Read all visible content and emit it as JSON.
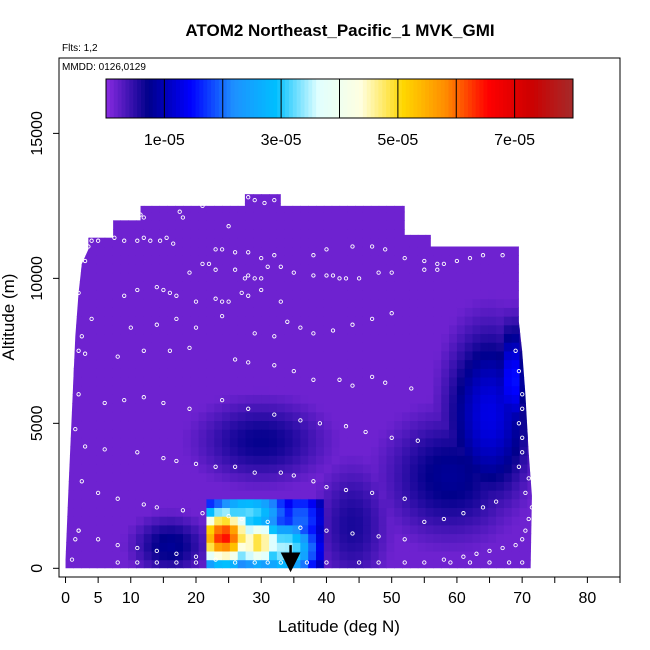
{
  "chart_data": {
    "type": "heatmap",
    "title": "ATOM2 Northeast_Pacific_1 MVK_GMI",
    "flights_label": "Flts: 1,2",
    "dates_label": "MMDD: 0126,0129",
    "xlabel": "Latitude (deg N)",
    "ylabel": "Altitude (m)",
    "xlim": [
      -1,
      85
    ],
    "ylim": [
      -300,
      17600
    ],
    "x_ticks": [
      0,
      5,
      10,
      20,
      30,
      40,
      50,
      60,
      70,
      80
    ],
    "y_ticks": [
      0,
      5000,
      10000,
      15000
    ],
    "y_tick_labels": [
      "0",
      "5000",
      "10000",
      "15000"
    ],
    "colorbar": {
      "min": 0,
      "max": 8e-05,
      "tick_values": [
        1e-05,
        3e-05,
        5e-05,
        7e-05
      ],
      "tick_labels": [
        "1e-05",
        "3e-05",
        "5e-05",
        "7e-05"
      ],
      "divisions": [
        0,
        1e-05,
        2e-05,
        3e-05,
        4e-05,
        5e-05,
        6e-05,
        7e-05,
        8e-05
      ],
      "colors": [
        "#8a2be2",
        "#00008b",
        "#0000ff",
        "#1e90ff",
        "#00bfff",
        "#e0ffff",
        "#ffffe0",
        "#ffd700",
        "#ff8c00",
        "#ff0000",
        "#cd0000",
        "#a52a2a"
      ]
    },
    "domain_envelope": [
      {
        "x": 0,
        "y": 0
      },
      {
        "x": 0,
        "y": 300
      },
      {
        "x": 0.5,
        "y": 3000
      },
      {
        "x": 1,
        "y": 5500
      },
      {
        "x": 1.5,
        "y": 8000
      },
      {
        "x": 2,
        "y": 9500
      },
      {
        "x": 2.5,
        "y": 10500
      },
      {
        "x": 3.5,
        "y": 11000
      },
      {
        "x": 3.5,
        "y": 11400
      },
      {
        "x": 7.3,
        "y": 11400
      },
      {
        "x": 7.3,
        "y": 12000
      },
      {
        "x": 11.5,
        "y": 12000
      },
      {
        "x": 11.5,
        "y": 12500
      },
      {
        "x": 27.5,
        "y": 12500
      },
      {
        "x": 27.5,
        "y": 12900
      },
      {
        "x": 33,
        "y": 12900
      },
      {
        "x": 33,
        "y": 12500
      },
      {
        "x": 52,
        "y": 12500
      },
      {
        "x": 52,
        "y": 11500
      },
      {
        "x": 56,
        "y": 11500
      },
      {
        "x": 56,
        "y": 11100
      },
      {
        "x": 69.5,
        "y": 11100
      },
      {
        "x": 69.5,
        "y": 8500
      },
      {
        "x": 70,
        "y": 7500
      },
      {
        "x": 70.5,
        "y": 6000
      },
      {
        "x": 71,
        "y": 4000
      },
      {
        "x": 71.5,
        "y": 2500
      },
      {
        "x": 71.3,
        "y": 0
      }
    ],
    "blobs": [
      {
        "x": 65,
        "y": 5300,
        "sx": 4.5,
        "sy": 2000,
        "value": 1.3e-05
      },
      {
        "x": 68.5,
        "y": 6500,
        "sx": 1.5,
        "sy": 1300,
        "value": 1.6e-05
      },
      {
        "x": 59,
        "y": 3200,
        "sx": 7,
        "sy": 1500,
        "value": 8e-06
      },
      {
        "x": 30,
        "y": 4400,
        "sx": 7,
        "sy": 1000,
        "value": 7e-06
      },
      {
        "x": 16,
        "y": 800,
        "sx": 4,
        "sy": 700,
        "value": 8e-06
      },
      {
        "x": 44,
        "y": 1500,
        "sx": 4,
        "sy": 1500,
        "value": 6e-06
      }
    ],
    "hotspot": {
      "x_range": [
        22,
        40
      ],
      "y_top": 2500,
      "cells": [
        {
          "x": 24.3,
          "y": 1100,
          "sx": 3.5,
          "sy": 750,
          "value": 6.5e-05
        },
        {
          "x": 29.5,
          "y": 900,
          "sx": 3,
          "sy": 650,
          "value": 5e-05
        },
        {
          "x": 33.5,
          "y": 700,
          "sx": 4,
          "sy": 800,
          "value": 3.5e-05
        },
        {
          "x": 28,
          "y": 1900,
          "sx": 5,
          "sy": 700,
          "value": 3.2e-05
        },
        {
          "x": 36,
          "y": 1700,
          "sx": 3,
          "sy": 900,
          "value": 2e-05
        }
      ]
    },
    "arrow": {
      "x": 34.5,
      "y_from": 800,
      "y_to": 0
    },
    "flight_points": [
      [
        1,
        300
      ],
      [
        2,
        1300
      ],
      [
        1.5,
        1000
      ],
      [
        2.5,
        3000
      ],
      [
        1.5,
        4800
      ],
      [
        2,
        7500
      ],
      [
        2.5,
        8000
      ],
      [
        2,
        9500
      ],
      [
        3,
        10600
      ],
      [
        3.5,
        11100
      ],
      [
        4,
        11300
      ],
      [
        5,
        11300
      ],
      [
        7.5,
        11400
      ],
      [
        9,
        11300
      ],
      [
        11,
        11300
      ],
      [
        12,
        11400
      ],
      [
        13,
        11300
      ],
      [
        14.5,
        11300
      ],
      [
        15.5,
        11400
      ],
      [
        16.5,
        11200
      ],
      [
        11.5,
        12200
      ],
      [
        12,
        12100
      ],
      [
        16,
        12600
      ],
      [
        17,
        12600
      ],
      [
        17.5,
        12300
      ],
      [
        18,
        12100
      ],
      [
        21,
        12500
      ],
      [
        25,
        11800
      ],
      [
        27,
        12900
      ],
      [
        28,
        12800
      ],
      [
        29,
        12700
      ],
      [
        30.5,
        12600
      ],
      [
        32,
        12700
      ],
      [
        19,
        10200
      ],
      [
        21,
        10500
      ],
      [
        22,
        10500
      ],
      [
        23,
        10300
      ],
      [
        26,
        10300
      ],
      [
        27.5,
        10000
      ],
      [
        28,
        10100
      ],
      [
        29,
        10000
      ],
      [
        30,
        10000
      ],
      [
        31,
        10400
      ],
      [
        33,
        10400
      ],
      [
        35,
        10200
      ],
      [
        38,
        10100
      ],
      [
        40,
        10100
      ],
      [
        41,
        10100
      ],
      [
        42,
        10000
      ],
      [
        43,
        10000
      ],
      [
        45,
        10000
      ],
      [
        48,
        10200
      ],
      [
        50,
        10200
      ],
      [
        55,
        10300
      ],
      [
        57,
        10300
      ],
      [
        58,
        10500
      ],
      [
        60,
        10600
      ],
      [
        62,
        10700
      ],
      [
        64,
        10800
      ],
      [
        67,
        10800
      ],
      [
        23,
        11000
      ],
      [
        24,
        11000
      ],
      [
        26,
        10900
      ],
      [
        28,
        10900
      ],
      [
        30,
        10700
      ],
      [
        32,
        10800
      ],
      [
        38,
        10800
      ],
      [
        40,
        11000
      ],
      [
        44,
        11100
      ],
      [
        47,
        11100
      ],
      [
        49,
        11000
      ],
      [
        52,
        10700
      ],
      [
        55,
        10600
      ],
      [
        57,
        10500
      ],
      [
        9,
        9400
      ],
      [
        11,
        9600
      ],
      [
        14,
        9700
      ],
      [
        15,
        9600
      ],
      [
        16,
        9500
      ],
      [
        17,
        9400
      ],
      [
        20,
        9200
      ],
      [
        23,
        9300
      ],
      [
        24,
        9200
      ],
      [
        25,
        9200
      ],
      [
        27,
        9500
      ],
      [
        28,
        9400
      ],
      [
        30,
        9600
      ],
      [
        33,
        9200
      ],
      [
        4,
        8600
      ],
      [
        10,
        8300
      ],
      [
        14,
        8400
      ],
      [
        17,
        8600
      ],
      [
        20,
        8300
      ],
      [
        24,
        8700
      ],
      [
        29,
        8100
      ],
      [
        32,
        8000
      ],
      [
        34,
        8500
      ],
      [
        36,
        8300
      ],
      [
        38,
        8100
      ],
      [
        41,
        8200
      ],
      [
        44,
        8400
      ],
      [
        47,
        8600
      ],
      [
        50,
        8800
      ],
      [
        3,
        7400
      ],
      [
        8,
        7300
      ],
      [
        12,
        7500
      ],
      [
        16,
        7500
      ],
      [
        19,
        7600
      ],
      [
        26,
        7200
      ],
      [
        28,
        7100
      ],
      [
        32,
        7000
      ],
      [
        35,
        6800
      ],
      [
        38,
        6500
      ],
      [
        42,
        6500
      ],
      [
        44,
        6300
      ],
      [
        47,
        6600
      ],
      [
        49,
        6400
      ],
      [
        53,
        6200
      ],
      [
        2,
        6000
      ],
      [
        6,
        5700
      ],
      [
        9,
        5800
      ],
      [
        12,
        5900
      ],
      [
        15,
        5700
      ],
      [
        19,
        5500
      ],
      [
        24,
        5800
      ],
      [
        28,
        5500
      ],
      [
        32,
        5300
      ],
      [
        36,
        5100
      ],
      [
        39,
        5000
      ],
      [
        43,
        4900
      ],
      [
        46,
        4700
      ],
      [
        50,
        4500
      ],
      [
        54,
        4400
      ],
      [
        3,
        4200
      ],
      [
        6,
        4100
      ],
      [
        11,
        4000
      ],
      [
        15,
        3800
      ],
      [
        17,
        3700
      ],
      [
        20,
        3600
      ],
      [
        23,
        3500
      ],
      [
        26,
        3500
      ],
      [
        29,
        3300
      ],
      [
        33,
        3300
      ],
      [
        35,
        3200
      ],
      [
        38,
        3000
      ],
      [
        40,
        2800
      ],
      [
        43,
        2700
      ],
      [
        47,
        2600
      ],
      [
        52,
        2400
      ],
      [
        5,
        2600
      ],
      [
        8,
        2400
      ],
      [
        12,
        2200
      ],
      [
        14,
        2100
      ],
      [
        18,
        2000
      ],
      [
        21,
        1900
      ],
      [
        25,
        1800
      ],
      [
        27,
        1700
      ],
      [
        31,
        1600
      ],
      [
        36,
        1400
      ],
      [
        40,
        1300
      ],
      [
        44,
        1200
      ],
      [
        48,
        1100
      ],
      [
        52,
        1000
      ],
      [
        2,
        1300
      ],
      [
        5,
        1000
      ],
      [
        8,
        800
      ],
      [
        11,
        700
      ],
      [
        14,
        600
      ],
      [
        17,
        500
      ],
      [
        20,
        400
      ],
      [
        23,
        300
      ],
      [
        26,
        200
      ],
      [
        29,
        200
      ],
      [
        31,
        200
      ],
      [
        33,
        200
      ],
      [
        37,
        200
      ],
      [
        40,
        200
      ],
      [
        45,
        200
      ],
      [
        48,
        200
      ],
      [
        52,
        200
      ],
      [
        55,
        200
      ],
      [
        58,
        300
      ],
      [
        61,
        400
      ],
      [
        63,
        500
      ],
      [
        65,
        600
      ],
      [
        67,
        700
      ],
      [
        69,
        800
      ],
      [
        70,
        1000
      ],
      [
        70.5,
        1300
      ],
      [
        71,
        1700
      ],
      [
        71.5,
        2100
      ],
      [
        70.5,
        2600
      ],
      [
        71,
        3100
      ],
      [
        69.5,
        3500
      ],
      [
        70,
        4000
      ],
      [
        70,
        4500
      ],
      [
        69.5,
        5000
      ],
      [
        70,
        5500
      ],
      [
        70,
        6000
      ],
      [
        69.5,
        6800
      ],
      [
        69,
        7500
      ],
      [
        70,
        8500
      ],
      [
        8,
        200
      ],
      [
        11,
        200
      ],
      [
        14,
        200
      ],
      [
        17,
        200
      ],
      [
        20,
        200
      ],
      [
        59,
        200
      ],
      [
        62,
        200
      ],
      [
        65,
        200
      ],
      [
        68,
        200
      ],
      [
        70,
        200
      ],
      [
        55,
        1600
      ],
      [
        58,
        1700
      ],
      [
        61,
        1900
      ],
      [
        64,
        2100
      ],
      [
        66,
        2300
      ]
    ]
  }
}
